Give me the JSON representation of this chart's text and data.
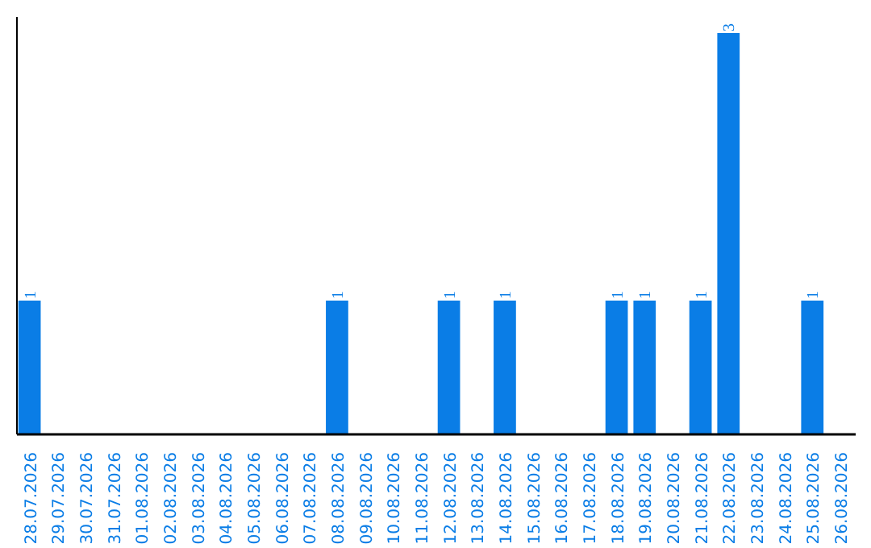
{
  "chart_data": {
    "type": "bar",
    "categories": [
      "28.07.2026",
      "29.07.2026",
      "30.07.2026",
      "31.07.2026",
      "01.08.2026",
      "02.08.2026",
      "03.08.2026",
      "04.08.2026",
      "05.08.2026",
      "06.08.2026",
      "07.08.2026",
      "08.08.2026",
      "09.08.2026",
      "10.08.2026",
      "11.08.2026",
      "12.08.2026",
      "13.08.2026",
      "14.08.2026",
      "15.08.2026",
      "16.08.2026",
      "17.08.2026",
      "18.08.2026",
      "19.08.2026",
      "20.08.2026",
      "21.08.2026",
      "22.08.2026",
      "23.08.2026",
      "24.08.2026",
      "25.08.2026",
      "26.08.2026"
    ],
    "values": [
      1,
      0,
      0,
      0,
      0,
      0,
      0,
      0,
      0,
      0,
      0,
      1,
      0,
      0,
      0,
      1,
      0,
      1,
      0,
      0,
      0,
      1,
      1,
      0,
      1,
      3,
      0,
      0,
      1,
      0
    ],
    "value_labels": [
      "1",
      null,
      null,
      null,
      null,
      null,
      null,
      null,
      null,
      null,
      null,
      "1",
      null,
      null,
      null,
      "1",
      null,
      "1",
      null,
      null,
      null,
      "1",
      "1",
      null,
      "1",
      "3",
      null,
      null,
      "1",
      null
    ],
    "color": "#0a7de6",
    "relative": false,
    "grid": false
  }
}
